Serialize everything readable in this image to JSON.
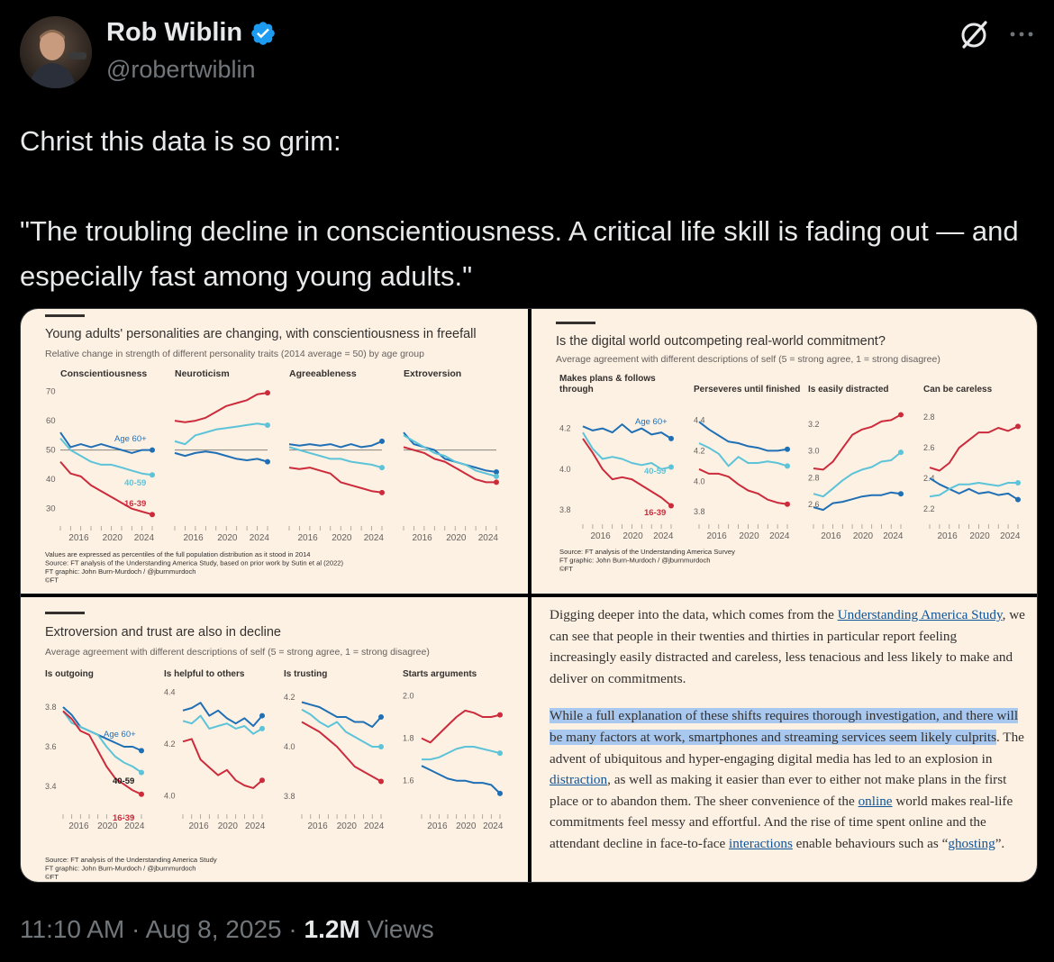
{
  "author": {
    "name": "Rob Wiblin",
    "handle": "@robertwiblin"
  },
  "tweet": {
    "line1": "Christ this data is so grim:",
    "line2": "\"The troubling decline in conscientiousness. A critical life skill is fading out — and especially fast among young adults.\""
  },
  "colors": {
    "age60": "#1f6fb5",
    "age40_59": "#5cc3d8",
    "age16_39": "#cc2b3b",
    "panel_bg": "#fdf1e4",
    "verified": "#1d9bf0"
  },
  "panels": [
    {
      "title": "Young adults' personalities are changing, with conscientiousness in freefall",
      "subtitle": "Relative change in strength of different personality traits (2014 average = 50) by age group",
      "footnotes": [
        "Values are expressed as percentiles of the full population distribution as it stood in 2014",
        "Source: FT analysis of the Understanding America Study, based on prior work by Sutin et al (2022)",
        "FT graphic: John Burn-Murdoch / @jburnmurdoch",
        "©FT"
      ],
      "y_ticks": [
        "70",
        "60",
        "50",
        "40",
        "30"
      ],
      "x_ticks": [
        "2016",
        "2020",
        "2024"
      ],
      "series_labels": [
        "Age 60+",
        "40-59",
        "16-39"
      ],
      "charts": [
        {
          "title": "Conscientiousness",
          "ylim": [
            25,
            72
          ],
          "baseline": 50,
          "age60": [
            56,
            51,
            52,
            51,
            52,
            51,
            50,
            49,
            50,
            50
          ],
          "age40_59": [
            54,
            50,
            48,
            46,
            45,
            45,
            44,
            43,
            42,
            41.5
          ],
          "age16_39": [
            46,
            42,
            41,
            38,
            36,
            34,
            32,
            30,
            29,
            28
          ]
        },
        {
          "title": "Neuroticism",
          "ylim": [
            25,
            72
          ],
          "baseline": 50,
          "age60": [
            49,
            48,
            49,
            49.5,
            49,
            48,
            47,
            46.5,
            47,
            46
          ],
          "age40_59": [
            53,
            52,
            55,
            56,
            57,
            57.5,
            58,
            58.5,
            59,
            58.5
          ],
          "age16_39": [
            60,
            59.5,
            60,
            61,
            63,
            65,
            66,
            67,
            69,
            69.5
          ]
        },
        {
          "title": "Agreeableness",
          "ylim": [
            25,
            72
          ],
          "baseline": 50,
          "age60": [
            52,
            51.5,
            52,
            51.5,
            52,
            51,
            52,
            51,
            51.5,
            53
          ],
          "age40_59": [
            51,
            50,
            49,
            48,
            47,
            47,
            46,
            45.5,
            45,
            44
          ],
          "age16_39": [
            44,
            43.5,
            44,
            43,
            42,
            39,
            38,
            37,
            36,
            35.5
          ]
        },
        {
          "title": "Extroversion",
          "ylim": [
            25,
            72
          ],
          "baseline": 50,
          "age60": [
            56,
            52,
            51,
            50,
            47,
            46,
            45,
            44,
            43,
            42.5
          ],
          "age40_59": [
            55,
            53,
            51,
            49,
            48,
            46,
            45,
            43,
            42,
            41
          ],
          "age16_39": [
            51,
            50,
            49,
            47,
            46,
            44,
            42,
            40,
            39,
            39
          ]
        }
      ]
    },
    {
      "title": "Is the digital world outcompeting real-world commitment?",
      "subtitle": "Average agreement with different descriptions of self (5 = strong agree, 1 = strong disagree)",
      "footnotes": [
        "Source: FT analysis of the Understanding America Survey",
        "FT graphic: John Burn-Murdoch / @jburnmurdoch",
        "©FT"
      ],
      "x_ticks": [
        "2016",
        "2020",
        "2024"
      ],
      "series_labels": [
        "Age 60+",
        "40-59",
        "16-39"
      ],
      "charts": [
        {
          "title": "Makes plans & follows through",
          "ylim": [
            3.76,
            4.3
          ],
          "ticks": [
            "4.2",
            "4.0",
            "3.8"
          ],
          "tickvals": [
            4.2,
            4.0,
            3.8
          ],
          "age60": [
            4.21,
            4.19,
            4.2,
            4.18,
            4.22,
            4.18,
            4.2,
            4.17,
            4.18,
            4.15
          ],
          "age40_59": [
            4.18,
            4.1,
            4.05,
            4.06,
            4.05,
            4.03,
            4.02,
            4.03,
            4.0,
            4.01
          ],
          "age16_39": [
            4.15,
            4.08,
            4.0,
            3.95,
            3.96,
            3.95,
            3.92,
            3.89,
            3.86,
            3.82
          ]
        },
        {
          "title": "Perseveres until finished",
          "ylim": [
            3.76,
            4.48
          ],
          "ticks": [
            "4.4",
            "4.2",
            "4.0",
            "3.8"
          ],
          "tickvals": [
            4.4,
            4.2,
            4.0,
            3.8
          ],
          "age60": [
            4.39,
            4.34,
            4.3,
            4.26,
            4.25,
            4.23,
            4.22,
            4.2,
            4.2,
            4.21
          ],
          "age40_59": [
            4.25,
            4.22,
            4.18,
            4.1,
            4.16,
            4.12,
            4.12,
            4.13,
            4.12,
            4.1
          ],
          "age16_39": [
            4.08,
            4.05,
            4.05,
            4.03,
            3.98,
            3.94,
            3.92,
            3.88,
            3.86,
            3.85
          ]
        },
        {
          "title": "Is easily distracted",
          "ylim": [
            2.5,
            3.32
          ],
          "ticks": [
            "3.2",
            "3.0",
            "2.8",
            "2.6"
          ],
          "tickvals": [
            3.2,
            3.0,
            2.8,
            2.6
          ],
          "age60": [
            2.58,
            2.56,
            2.61,
            2.62,
            2.64,
            2.66,
            2.67,
            2.67,
            2.69,
            2.68
          ],
          "age40_59": [
            2.68,
            2.66,
            2.72,
            2.78,
            2.83,
            2.86,
            2.88,
            2.92,
            2.93,
            2.99
          ],
          "age16_39": [
            2.87,
            2.86,
            2.92,
            3.02,
            3.12,
            3.16,
            3.18,
            3.22,
            3.23,
            3.27
          ]
        },
        {
          "title": "Can be careless",
          "ylim": [
            2.14,
            2.86
          ],
          "ticks": [
            "2.8",
            "2.6",
            "2.4",
            "2.2"
          ],
          "tickvals": [
            2.8,
            2.6,
            2.4,
            2.2
          ],
          "age60": [
            2.4,
            2.36,
            2.33,
            2.3,
            2.33,
            2.3,
            2.31,
            2.29,
            2.3,
            2.26
          ],
          "age40_59": [
            2.28,
            2.29,
            2.33,
            2.36,
            2.36,
            2.37,
            2.36,
            2.35,
            2.37,
            2.37
          ],
          "age16_39": [
            2.47,
            2.45,
            2.5,
            2.6,
            2.65,
            2.7,
            2.7,
            2.73,
            2.71,
            2.74
          ]
        }
      ]
    },
    {
      "title": "Extroversion and trust are also in decline",
      "subtitle": "Average agreement with different descriptions of self (5 = strong agree, 1 = strong disagree)",
      "footnotes": [
        "Source: FT analysis of the Understanding America Study",
        "FT graphic: John Burn-Murdoch / @jburnmurdoch",
        "©FT"
      ],
      "x_ticks": [
        "2016",
        "2020",
        "2024"
      ],
      "series_labels": [
        "Age 60+",
        "40-59",
        "16-39"
      ],
      "charts": [
        {
          "title": "Is outgoing",
          "ylim": [
            3.3,
            3.9
          ],
          "ticks": [
            "3.8",
            "3.6",
            "3.4"
          ],
          "tickvals": [
            3.8,
            3.6,
            3.4
          ],
          "age60": [
            3.8,
            3.76,
            3.7,
            3.68,
            3.66,
            3.64,
            3.62,
            3.6,
            3.6,
            3.58
          ],
          "age40_59": [
            3.78,
            3.72,
            3.7,
            3.68,
            3.66,
            3.6,
            3.55,
            3.52,
            3.5,
            3.47
          ],
          "age16_39": [
            3.78,
            3.74,
            3.68,
            3.66,
            3.58,
            3.5,
            3.44,
            3.41,
            3.38,
            3.36
          ]
        },
        {
          "title": "Is helpful to others",
          "ylim": [
            3.96,
            4.42
          ],
          "ticks": [
            "4.4",
            "4.2",
            "4.0"
          ],
          "tickvals": [
            4.4,
            4.2,
            4.0
          ],
          "age60": [
            4.33,
            4.34,
            4.36,
            4.31,
            4.33,
            4.3,
            4.28,
            4.3,
            4.27,
            4.31
          ],
          "age40_59": [
            4.29,
            4.28,
            4.31,
            4.26,
            4.27,
            4.28,
            4.26,
            4.27,
            4.24,
            4.26
          ],
          "age16_39": [
            4.21,
            4.22,
            4.14,
            4.11,
            4.08,
            4.1,
            4.06,
            4.04,
            4.03,
            4.06
          ]
        },
        {
          "title": "Is trusting",
          "ylim": [
            3.76,
            4.24
          ],
          "ticks": [
            "4.2",
            "4.0",
            "3.8"
          ],
          "tickvals": [
            4.2,
            4.0,
            3.8
          ],
          "age60": [
            4.18,
            4.17,
            4.16,
            4.14,
            4.12,
            4.12,
            4.1,
            4.1,
            4.08,
            4.12
          ],
          "age40_59": [
            4.15,
            4.13,
            4.1,
            4.08,
            4.1,
            4.06,
            4.04,
            4.02,
            4.0,
            4.0
          ],
          "age16_39": [
            4.1,
            4.08,
            4.06,
            4.03,
            4.0,
            3.96,
            3.92,
            3.9,
            3.88,
            3.86
          ]
        },
        {
          "title": "Starts arguments",
          "ylim": [
            1.48,
            2.04
          ],
          "ticks": [
            "2.0",
            "1.8",
            "1.6"
          ],
          "tickvals": [
            2.0,
            1.8,
            1.6
          ],
          "age60": [
            1.67,
            1.65,
            1.63,
            1.61,
            1.6,
            1.6,
            1.59,
            1.59,
            1.58,
            1.54
          ],
          "age40_59": [
            1.7,
            1.7,
            1.71,
            1.73,
            1.75,
            1.76,
            1.76,
            1.75,
            1.74,
            1.73
          ],
          "age16_39": [
            1.8,
            1.78,
            1.82,
            1.86,
            1.9,
            1.93,
            1.92,
            1.9,
            1.9,
            1.91
          ]
        }
      ]
    }
  ],
  "article": {
    "para1": [
      {
        "t": "Digging deeper into the data, which comes from the "
      },
      {
        "t": "Understanding America Study",
        "link": true
      },
      {
        "t": ", we can see that people in their twenties and thirties in particular report feeling increasingly easily distracted and careless, less tenacious and less likely to make and deliver on commitments."
      }
    ],
    "para2": [
      {
        "t": "While a full explanation of these shifts requires thorough investigation, and there will be many factors at work, smartphones and streaming services seem likely culprits",
        "hl": true
      },
      {
        "t": ". The advent of ubiquitous and hyper-engaging digital media has led to an explosion in "
      },
      {
        "t": "distraction",
        "link": true
      },
      {
        "t": ", as well as making it easier than ever to either not make plans in the first place or to abandon them. The sheer convenience of the "
      },
      {
        "t": "online",
        "link": true
      },
      {
        "t": " world makes real-life commitments feel messy and effortful. And the rise of time spent online and the attendant decline in face-to-face "
      },
      {
        "t": "interactions",
        "link": true
      },
      {
        "t": " enable behaviours such as “"
      },
      {
        "t": "ghosting",
        "link": true
      },
      {
        "t": "”."
      }
    ]
  },
  "meta": {
    "time": "11:10 AM",
    "date": "Aug 8, 2025",
    "views_count": "1.2M",
    "views_label": "Views",
    "sep": "·"
  }
}
